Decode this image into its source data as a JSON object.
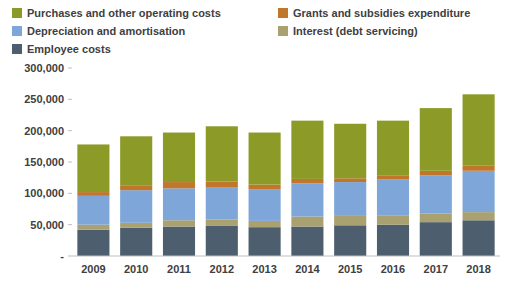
{
  "chart_data": {
    "type": "bar",
    "stacked": true,
    "grid": false,
    "categories": [
      "2009",
      "2010",
      "2011",
      "2012",
      "2013",
      "2014",
      "2015",
      "2016",
      "2017",
      "2018"
    ],
    "series": [
      {
        "name": "Employee costs",
        "color": "#4d5e6e",
        "values": [
          42000,
          45000,
          47000,
          48000,
          46000,
          47000,
          49000,
          50000,
          54000,
          57000
        ]
      },
      {
        "name": "Interest (debt servicing)",
        "color": "#a9a16f",
        "values": [
          8000,
          8000,
          10000,
          10000,
          10000,
          16000,
          15000,
          15000,
          14000,
          13000
        ]
      },
      {
        "name": "Depreciation and amortisation",
        "color": "#7ea6d9",
        "values": [
          46000,
          52000,
          51000,
          52000,
          50000,
          53000,
          54000,
          57000,
          61000,
          66000
        ]
      },
      {
        "name": "Grants and subsidies expenditure",
        "color": "#c0772b",
        "values": [
          6000,
          7000,
          10000,
          9000,
          8000,
          7000,
          6000,
          6000,
          7000,
          8000
        ]
      },
      {
        "name": "Purchases and other operating costs",
        "color": "#8c9b27",
        "values": [
          76000,
          79000,
          79000,
          88000,
          83000,
          93000,
          87000,
          88000,
          100000,
          114000
        ]
      }
    ],
    "ylim": [
      0,
      300000
    ],
    "yticks": [
      {
        "value": 0,
        "label": "-"
      },
      {
        "value": 50000,
        "label": "50,000"
      },
      {
        "value": 100000,
        "label": "100,000"
      },
      {
        "value": 150000,
        "label": "150,000"
      },
      {
        "value": 200000,
        "label": "200,000"
      },
      {
        "value": 250000,
        "label": "250,000"
      },
      {
        "value": 300000,
        "label": "300,000"
      }
    ]
  }
}
